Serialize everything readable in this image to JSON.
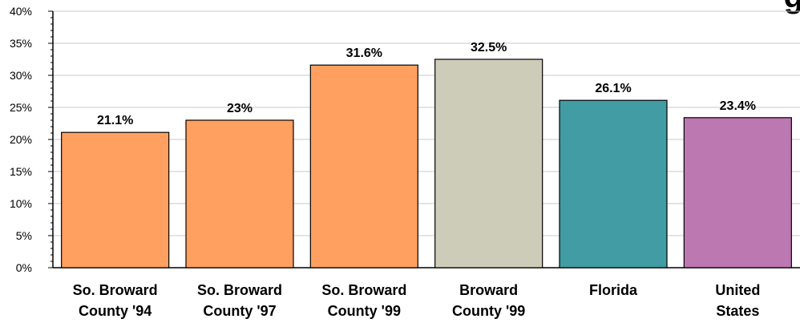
{
  "chart_data": {
    "type": "bar",
    "title_fragment": "g",
    "categories": [
      [
        "So. Broward",
        "County '94"
      ],
      [
        "So. Broward",
        "County '97"
      ],
      [
        "So. Broward",
        "County '99"
      ],
      [
        "Broward",
        "County '99"
      ],
      [
        "Florida"
      ],
      [
        "United",
        "States"
      ]
    ],
    "values": [
      21.1,
      23,
      31.6,
      32.5,
      26.1,
      23.4
    ],
    "value_labels": [
      "21.1%",
      "23%",
      "31.6%",
      "32.5%",
      "26.1%",
      "23.4%"
    ],
    "colors": [
      "#FFA060",
      "#FFA060",
      "#FFA060",
      "#CCCCB8",
      "#429CA4",
      "#BC78B0"
    ],
    "ylim": [
      0,
      40
    ],
    "y_ticks": [
      0,
      5,
      10,
      15,
      20,
      25,
      30,
      35,
      40
    ],
    "y_tick_labels": [
      "0%",
      "5%",
      "10%",
      "15%",
      "20%",
      "25%",
      "30%",
      "35%",
      "40%"
    ],
    "grid": true,
    "xlabel": "",
    "ylabel": ""
  }
}
